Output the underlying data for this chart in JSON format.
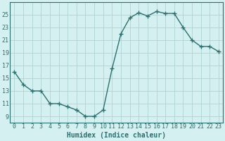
{
  "x": [
    0,
    1,
    2,
    3,
    4,
    5,
    6,
    7,
    8,
    9,
    10,
    11,
    12,
    13,
    14,
    15,
    16,
    17,
    18,
    19,
    20,
    21,
    22,
    23
  ],
  "y": [
    16,
    14,
    13,
    13,
    11,
    11,
    10.5,
    10,
    9,
    9,
    10,
    16.5,
    22,
    24.5,
    25.3,
    24.8,
    25.5,
    25.2,
    25.2,
    23,
    21,
    20,
    20,
    19.2
  ],
  "line_color": "#2d7070",
  "marker": "+",
  "marker_size": 4,
  "marker_linewidth": 1.0,
  "background_color": "#d5f0f0",
  "grid_color": "#aed4d4",
  "tick_color": "#2d7070",
  "label_color": "#2d7070",
  "xlabel": "Humidex (Indice chaleur)",
  "xlim": [
    -0.5,
    23.5
  ],
  "ylim": [
    8,
    27
  ],
  "yticks": [
    9,
    11,
    13,
    15,
    17,
    19,
    21,
    23,
    25
  ],
  "xticks": [
    0,
    1,
    2,
    3,
    4,
    5,
    6,
    7,
    8,
    9,
    10,
    11,
    12,
    13,
    14,
    15,
    16,
    17,
    18,
    19,
    20,
    21,
    22,
    23
  ],
  "xtick_labels": [
    "0",
    "1",
    "2",
    "3",
    "4",
    "5",
    "6",
    "7",
    "8",
    "9",
    "10",
    "11",
    "12",
    "13",
    "14",
    "15",
    "16",
    "17",
    "18",
    "19",
    "20",
    "21",
    "22",
    "23"
  ],
  "tick_fontsize": 6,
  "xlabel_fontsize": 7,
  "linewidth": 1.0
}
